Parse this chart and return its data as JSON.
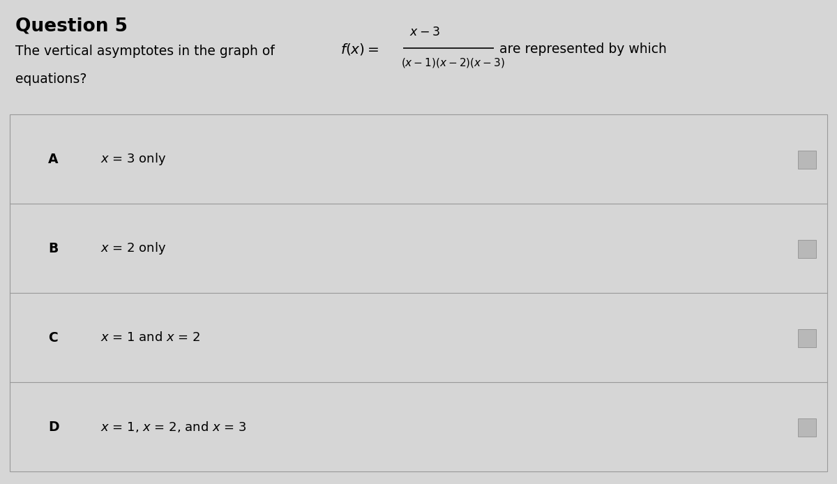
{
  "title": "Question 5",
  "background_color": "#d6d6d6",
  "title_fontsize": 19,
  "body_fontsize": 13.5,
  "option_letter_fontsize": 13.5,
  "option_text_fontsize": 13,
  "options": [
    {
      "letter": "A",
      "text": "x = 3 only"
    },
    {
      "letter": "B",
      "text": "x = 2 only"
    },
    {
      "letter": "C",
      "text": "x = 1 and x = 2"
    },
    {
      "letter": "D",
      "text": "x = 1, x = 2, and x = 3"
    }
  ]
}
